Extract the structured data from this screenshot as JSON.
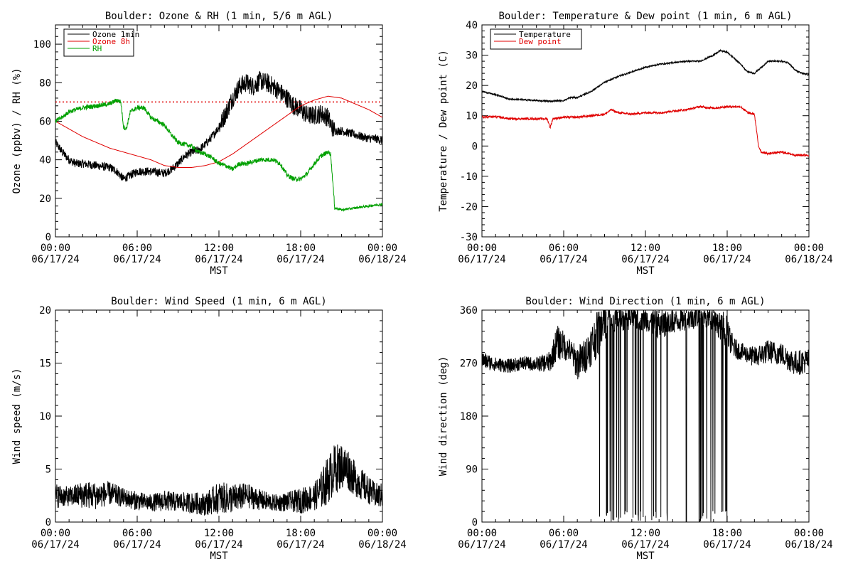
{
  "chart_data": [
    {
      "type": "line",
      "title": "Boulder: Ozone & RH (1 min, 5/6 m AGL)",
      "ylabel": "Ozone (ppbv) / RH (%)",
      "xlabel": "MST",
      "xlim": [
        0,
        24
      ],
      "ylim": [
        0,
        110
      ],
      "yticks": [
        0,
        20,
        40,
        60,
        80,
        100
      ],
      "xtick_labels": [
        [
          "00:00",
          "06/17/24"
        ],
        [
          "06:00",
          "06/17/24"
        ],
        [
          "12:00",
          "06/17/24"
        ],
        [
          "18:00",
          "06/17/24"
        ],
        [
          "00:00",
          "06/18/24"
        ]
      ],
      "reference_line": {
        "y": 70,
        "color": "#e00000",
        "style": "dotted"
      },
      "legend": "top-left",
      "series": [
        {
          "name": "Ozone 1min",
          "color": "#000000",
          "x": [
            0,
            0.5,
            1,
            1.5,
            2,
            3,
            4,
            4.5,
            5,
            5.5,
            6,
            7,
            8,
            8.5,
            9,
            9.5,
            10,
            10.5,
            11,
            11.5,
            12,
            12.5,
            13,
            13.5,
            14,
            14.5,
            15,
            15.5,
            16,
            16.5,
            17,
            17.5,
            18,
            18.5,
            19,
            19.5,
            20,
            20.3,
            20.5,
            21,
            21.5,
            22,
            22.5,
            23,
            23.5,
            24
          ],
          "y": [
            49,
            44,
            40,
            38,
            38,
            37,
            36,
            34,
            30,
            32,
            34,
            34,
            33,
            35,
            38,
            42,
            44,
            45,
            48,
            52,
            57,
            64,
            72,
            78,
            80,
            78,
            81,
            80,
            78,
            75,
            72,
            68,
            66,
            63,
            63,
            64,
            62,
            57,
            55,
            55,
            54,
            53,
            52,
            51,
            51,
            50
          ]
        },
        {
          "name": "Ozone 8h",
          "color": "#e00000",
          "x": [
            0,
            1,
            2,
            3,
            4,
            5,
            6,
            7,
            8,
            9,
            10,
            11,
            12,
            13,
            14,
            15,
            16,
            17,
            18,
            19,
            20,
            21,
            22,
            23,
            24
          ],
          "y": [
            60,
            56,
            52,
            49,
            46,
            44,
            42,
            40,
            37,
            36,
            36,
            37,
            39,
            43,
            48,
            53,
            58,
            63,
            68,
            71,
            73,
            72,
            69,
            66,
            62
          ]
        },
        {
          "name": "RH",
          "color": "#00a000",
          "x": [
            0,
            0.5,
            1,
            2,
            3,
            4,
            4.5,
            4.8,
            5,
            5.2,
            5.5,
            6,
            6.5,
            7,
            7.5,
            8,
            8.5,
            9,
            9.5,
            10,
            10.5,
            11,
            11.5,
            12,
            12.5,
            13,
            13.5,
            14,
            14.5,
            15,
            15.5,
            16,
            16.5,
            17,
            17.5,
            18,
            18.5,
            19,
            19.5,
            20,
            20.2,
            20.5,
            21,
            22,
            23,
            24
          ],
          "y": [
            60,
            62,
            65,
            67,
            68,
            69,
            71,
            70,
            57,
            56,
            65,
            67,
            67,
            62,
            60,
            58,
            53,
            49,
            48,
            47,
            44,
            43,
            41,
            38,
            37,
            35,
            38,
            38,
            39,
            40,
            40,
            40,
            38,
            32,
            30,
            30,
            33,
            38,
            42,
            44,
            43,
            15,
            14,
            15,
            16,
            17
          ]
        }
      ]
    },
    {
      "type": "line",
      "title": "Boulder: Temperature & Dew point (1 min, 6 m AGL)",
      "ylabel": "Temperature / Dew point (C)",
      "xlabel": "MST",
      "xlim": [
        0,
        24
      ],
      "ylim": [
        -30,
        40
      ],
      "yticks": [
        -30,
        -20,
        -10,
        0,
        10,
        20,
        30,
        40
      ],
      "xtick_labels": [
        [
          "00:00",
          "06/17/24"
        ],
        [
          "06:00",
          "06/17/24"
        ],
        [
          "12:00",
          "06/17/24"
        ],
        [
          "18:00",
          "06/17/24"
        ],
        [
          "00:00",
          "06/18/24"
        ]
      ],
      "legend": "top-left",
      "series": [
        {
          "name": "Temperature",
          "color": "#000000",
          "x": [
            0,
            1,
            2,
            3,
            4,
            5,
            6,
            6.5,
            7,
            7.5,
            8,
            9,
            10,
            11,
            12,
            13,
            14,
            15,
            16,
            16.5,
            17,
            17.5,
            18,
            18.5,
            19,
            19.5,
            20,
            20.5,
            21,
            22,
            22.5,
            23,
            23.5,
            24
          ],
          "y": [
            18,
            17,
            15.5,
            15.3,
            15,
            14.8,
            15,
            16,
            16,
            17,
            18,
            21,
            23,
            24.5,
            26,
            27,
            27.5,
            28,
            28,
            29,
            30,
            31.5,
            31,
            29,
            27,
            24.5,
            24,
            26,
            28,
            28,
            27.5,
            25,
            24,
            23.5
          ]
        },
        {
          "name": "Dew point",
          "color": "#e00000",
          "x": [
            0,
            1,
            2,
            3,
            4,
            4.8,
            5,
            5.2,
            6,
            7,
            8,
            9,
            9.5,
            10,
            11,
            12,
            13,
            14,
            15,
            16,
            17,
            18,
            18.5,
            19,
            19.5,
            20,
            20.3,
            20.5,
            21,
            22,
            23,
            24
          ],
          "y": [
            9.5,
            9.7,
            9,
            9,
            9,
            9,
            6,
            9,
            9.5,
            9.5,
            10,
            10.5,
            12,
            11,
            10.5,
            11,
            11,
            11.5,
            12,
            13,
            12.5,
            13,
            13,
            13,
            11,
            10.5,
            0,
            -2,
            -2.5,
            -2,
            -3,
            -3
          ]
        }
      ]
    },
    {
      "type": "line",
      "title": "Boulder: Wind Speed (1 min, 6 m AGL)",
      "ylabel": "Wind speed (m/s)",
      "xlabel": "MST",
      "xlim": [
        0,
        24
      ],
      "ylim": [
        0,
        20
      ],
      "yticks": [
        0,
        5,
        10,
        15,
        20
      ],
      "xtick_labels": [
        [
          "00:00",
          "06/17/24"
        ],
        [
          "06:00",
          "06/17/24"
        ],
        [
          "12:00",
          "06/17/24"
        ],
        [
          "18:00",
          "06/17/24"
        ],
        [
          "00:00",
          "06/18/24"
        ]
      ],
      "series": [
        {
          "name": "",
          "color": "#000000",
          "x": [
            0,
            1,
            2,
            3,
            4,
            5,
            6,
            7,
            8,
            9,
            10,
            11,
            12,
            13,
            14,
            15,
            16,
            17,
            18,
            19,
            19.5,
            20,
            20.5,
            21,
            21.5,
            22,
            22.5,
            23,
            23.5,
            24
          ],
          "y": [
            2.5,
            2.4,
            2.6,
            2.5,
            2.7,
            2.3,
            2,
            1.8,
            2,
            1.9,
            1.8,
            1.7,
            2.3,
            2.2,
            2.5,
            2.1,
            1.8,
            1.9,
            2,
            2.4,
            3,
            4,
            5,
            5.3,
            5,
            4,
            3.5,
            3,
            2.5,
            2.5
          ],
          "noise": [
            1.2,
            0.9,
            1.3,
            1.3,
            1.1,
            0.9,
            0.9,
            0.8,
            1,
            0.9,
            1,
            1.1,
            1.5,
            1.4,
            1.2,
            1,
            0.8,
            0.9,
            1.2,
            1.3,
            1.8,
            2.3,
            2.4,
            2.2,
            2,
            1.6,
            1.5,
            1.3,
            1.2,
            1.2
          ]
        }
      ]
    },
    {
      "type": "line",
      "title": "Boulder: Wind Direction (1 min, 6 m AGL)",
      "ylabel": "Wind direction (deg)",
      "xlabel": "MST",
      "xlim": [
        0,
        24
      ],
      "ylim": [
        0,
        360
      ],
      "yticks": [
        0,
        90,
        180,
        270,
        360
      ],
      "xtick_labels": [
        [
          "00:00",
          "06/17/24"
        ],
        [
          "06:00",
          "06/17/24"
        ],
        [
          "12:00",
          "06/17/24"
        ],
        [
          "18:00",
          "06/17/24"
        ],
        [
          "00:00",
          "06/18/24"
        ]
      ],
      "series": [
        {
          "name": "",
          "color": "#000000",
          "x": [
            0,
            1,
            2,
            3,
            4,
            5,
            5.5,
            6,
            6.5,
            7,
            7.5,
            8,
            8.5,
            9,
            10,
            11,
            12,
            13,
            14,
            15,
            16,
            17,
            18,
            18.5,
            19,
            19.5,
            20,
            21,
            22,
            23,
            24
          ],
          "y": [
            275,
            268,
            265,
            270,
            268,
            272,
            305,
            300,
            290,
            270,
            280,
            300,
            320,
            340,
            345,
            345,
            345,
            335,
            340,
            345,
            350,
            345,
            320,
            295,
            290,
            285,
            280,
            290,
            285,
            270,
            275
          ],
          "noise": [
            15,
            12,
            12,
            12,
            12,
            18,
            30,
            25,
            20,
            30,
            30,
            35,
            40,
            30,
            20,
            20,
            20,
            25,
            20,
            20,
            20,
            20,
            25,
            18,
            15,
            15,
            18,
            20,
            20,
            22,
            20
          ],
          "wrap_spans": [
            [
              8.6,
              14.0
            ],
            [
              15.9,
              18.0
            ]
          ],
          "wrap_isolated": [
            15.0
          ]
        }
      ]
    }
  ]
}
